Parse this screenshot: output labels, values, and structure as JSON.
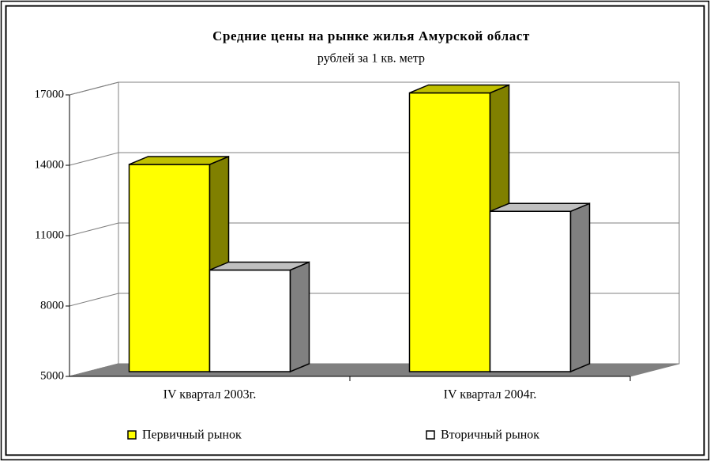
{
  "chart_data": {
    "type": "bar3d",
    "title": "Средние цены на рынке жилья Амурской област",
    "subtitle": "рублей за 1 кв. метр",
    "categories": [
      "IV квартал 2003г.",
      "IV квартал 2004г."
    ],
    "series": [
      {
        "name": "Первичный рынок",
        "color": "#ffff00",
        "values": [
          13900,
          16950
        ]
      },
      {
        "name": "Вторичный рынок",
        "color": "#ffffff",
        "values": [
          9400,
          11900
        ]
      }
    ],
    "ylim": [
      5000,
      17000
    ],
    "yticks": [
      5000,
      8000,
      11000,
      14000,
      17000
    ],
    "grid": true
  }
}
